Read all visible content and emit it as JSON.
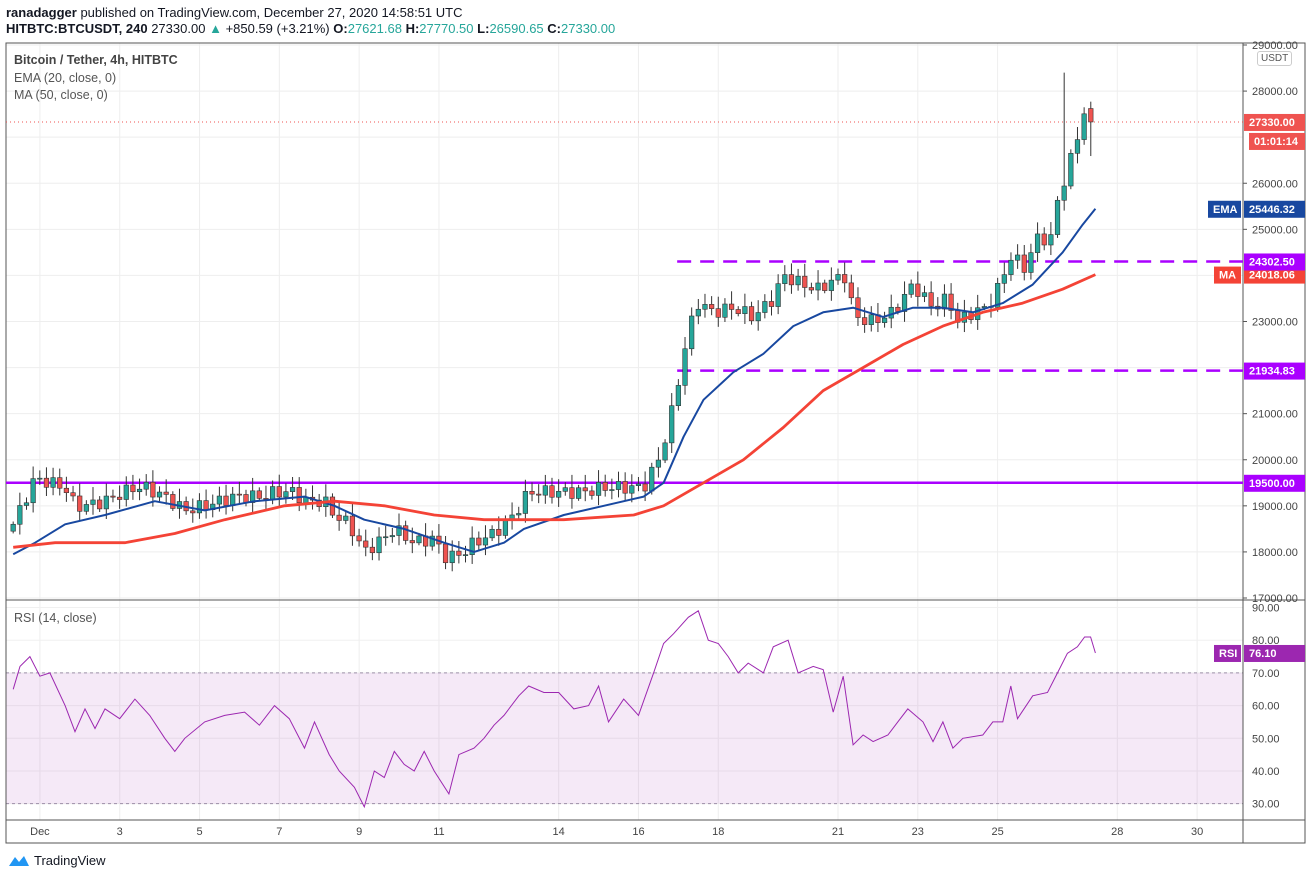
{
  "header": {
    "author": "ranadagger",
    "published": "published on TradingView.com, December 27, 2020 14:58:51 UTC",
    "symbol": "HITBTC:BTCUSDT, 240",
    "last": "27330.00",
    "change": "+850.59 (+3.21%)",
    "o_label": "O:",
    "o": "27621.68",
    "h_label": "H:",
    "h": "27770.50",
    "l_label": "L:",
    "l": "26590.65",
    "c_label": "C:",
    "c": "27330.00"
  },
  "legend": {
    "title": "Bitcoin / Tether, 4h, HITBTC",
    "ema": "EMA (20, close, 0)",
    "ma": "MA (50, close, 0)",
    "rsi": "RSI (14, close)"
  },
  "axis": {
    "currency": "USDT",
    "last_price": "27330.00",
    "countdown": "01:01:14",
    "ema_tag": "EMA",
    "ema_value": "25446.32",
    "ma_tag": "MA",
    "ma_value": "24018.06",
    "rsi_tag": "RSI",
    "rsi_value": "76.10"
  },
  "footer": {
    "brand": "TradingView"
  },
  "colors": {
    "up": "#26a69a",
    "down": "#ef5350",
    "ema": "#1848a0",
    "ma": "#f44336",
    "level": "#aa00ff",
    "rsi": "#9c27b0"
  },
  "chart_data": {
    "type": "candlestick",
    "title": "Bitcoin / Tether, 4h, HITBTC",
    "x_unit": "day of December 2020",
    "candle_interval_days": 0.1667,
    "price_ylim": [
      17000,
      29000
    ],
    "price_ticks": [
      29000,
      28000,
      26000,
      25000,
      23000,
      21000,
      20000,
      19000,
      18000,
      17000
    ],
    "price_tick_labels": [
      "29000.00",
      "28000.00",
      "26000.00",
      "25000.00",
      "23000.00",
      "21000.00",
      "20000.00",
      "19000.00",
      "18000.00",
      "17000.00"
    ],
    "x_ticks": [
      1,
      3,
      5,
      7,
      9,
      11,
      14,
      16,
      18,
      21,
      23,
      25,
      28,
      30
    ],
    "x_tick_labels": [
      "Dec",
      "3",
      "5",
      "7",
      "9",
      "11",
      "14",
      "16",
      "18",
      "21",
      "23",
      "25",
      "28",
      "30"
    ],
    "x_range": [
      0.15,
      31.15
    ],
    "last_candle": {
      "open": 27621.68,
      "high": 27770.5,
      "low": 26590.65,
      "close": 27330.0
    },
    "close_anchors": [
      [
        0.33,
        18600
      ],
      [
        0.88,
        19600
      ],
      [
        1.63,
        19400
      ],
      [
        1.88,
        19000
      ],
      [
        2.13,
        19000
      ],
      [
        2.63,
        19100
      ],
      [
        3.38,
        19400
      ],
      [
        3.63,
        19400
      ],
      [
        4.13,
        19200
      ],
      [
        4.63,
        18900
      ],
      [
        5.13,
        19000
      ],
      [
        5.88,
        19200
      ],
      [
        6.63,
        19200
      ],
      [
        6.88,
        19300
      ],
      [
        7.38,
        19300
      ],
      [
        7.63,
        19100
      ],
      [
        8.13,
        19100
      ],
      [
        8.38,
        18800
      ],
      [
        8.75,
        18600
      ],
      [
        9.13,
        18000
      ],
      [
        9.63,
        18300
      ],
      [
        9.88,
        18500
      ],
      [
        10.38,
        18200
      ],
      [
        10.88,
        18300
      ],
      [
        11.13,
        17900
      ],
      [
        11.38,
        17900
      ],
      [
        11.63,
        18000
      ],
      [
        11.88,
        18200
      ],
      [
        12.38,
        18400
      ],
      [
        12.88,
        18800
      ],
      [
        13.25,
        19300
      ],
      [
        14.63,
        19300
      ],
      [
        15.13,
        19400
      ],
      [
        16.13,
        19400
      ],
      [
        16.5,
        20000
      ],
      [
        16.75,
        20700
      ],
      [
        17,
        21700
      ],
      [
        17.25,
        22800
      ],
      [
        17.5,
        23400
      ],
      [
        17.88,
        23200
      ],
      [
        18.38,
        23300
      ],
      [
        18.88,
        23100
      ],
      [
        19.38,
        23500
      ],
      [
        19.63,
        24000
      ],
      [
        20.13,
        23800
      ],
      [
        20.5,
        23700
      ],
      [
        20.88,
        23900
      ],
      [
        21.25,
        24000
      ],
      [
        21.38,
        23100
      ],
      [
        21.88,
        23000
      ],
      [
        22.38,
        23200
      ],
      [
        22.63,
        23500
      ],
      [
        22.88,
        23800
      ],
      [
        23.38,
        23300
      ],
      [
        23.75,
        23500
      ],
      [
        24,
        23000
      ],
      [
        24.38,
        23200
      ],
      [
        24.75,
        23300
      ],
      [
        25,
        23700
      ],
      [
        25.38,
        24500
      ],
      [
        25.63,
        24100
      ],
      [
        26,
        24800
      ],
      [
        26.38,
        24800
      ],
      [
        26.5,
        25600
      ],
      [
        26.83,
        26500
      ],
      [
        27,
        27000
      ],
      [
        27.18,
        27600
      ],
      [
        27.33,
        27800
      ],
      [
        27.45,
        27330
      ]
    ],
    "series": [
      {
        "name": "EMA (20, close, 0)",
        "points": [
          [
            0.33,
            17950
          ],
          [
            0.88,
            18200
          ],
          [
            1.63,
            18600
          ],
          [
            2.63,
            18800
          ],
          [
            3.88,
            19100
          ],
          [
            5.13,
            18900
          ],
          [
            6.38,
            19100
          ],
          [
            7.63,
            19200
          ],
          [
            8.38,
            19000
          ],
          [
            9.13,
            18700
          ],
          [
            10.13,
            18500
          ],
          [
            11.13,
            18200
          ],
          [
            11.88,
            18000
          ],
          [
            12.63,
            18200
          ],
          [
            13.13,
            18500
          ],
          [
            14.13,
            18800
          ],
          [
            15.13,
            19000
          ],
          [
            16.13,
            19200
          ],
          [
            16.63,
            19500
          ],
          [
            17.13,
            20500
          ],
          [
            17.63,
            21300
          ],
          [
            18.38,
            21900
          ],
          [
            19.13,
            22300
          ],
          [
            19.88,
            22900
          ],
          [
            20.63,
            23200
          ],
          [
            21.38,
            23300
          ],
          [
            22.13,
            23100
          ],
          [
            22.88,
            23300
          ],
          [
            23.63,
            23300
          ],
          [
            24.38,
            23200
          ],
          [
            25.13,
            23400
          ],
          [
            25.88,
            23800
          ],
          [
            26.63,
            24500
          ],
          [
            27.13,
            25100
          ],
          [
            27.45,
            25446.32
          ]
        ]
      },
      {
        "name": "MA (50, close, 0)",
        "points": [
          [
            0.33,
            18100
          ],
          [
            1.38,
            18200
          ],
          [
            3.13,
            18200
          ],
          [
            4.38,
            18400
          ],
          [
            5.63,
            18700
          ],
          [
            7.13,
            19000
          ],
          [
            8.38,
            19100
          ],
          [
            9.63,
            19000
          ],
          [
            10.88,
            18800
          ],
          [
            12.13,
            18700
          ],
          [
            14.13,
            18700
          ],
          [
            15.88,
            18800
          ],
          [
            16.63,
            19000
          ],
          [
            17.63,
            19500
          ],
          [
            18.63,
            20000
          ],
          [
            19.63,
            20700
          ],
          [
            20.63,
            21500
          ],
          [
            21.63,
            22000
          ],
          [
            22.63,
            22500
          ],
          [
            23.63,
            22900
          ],
          [
            24.63,
            23200
          ],
          [
            25.63,
            23400
          ],
          [
            26.63,
            23700
          ],
          [
            27.45,
            24018.06
          ]
        ]
      }
    ],
    "levels": [
      {
        "value": 24302.5,
        "label": "24302.50",
        "style": "dashed",
        "from_day": 16.97
      },
      {
        "value": 21934.83,
        "label": "21934.83",
        "style": "dashed",
        "from_day": 16.97
      },
      {
        "value": 19500.0,
        "label": "19500.00",
        "style": "solid",
        "from_day": 0.15
      }
    ],
    "rsi": {
      "name": "RSI (14, close)",
      "ylim": [
        25,
        92
      ],
      "ticks": [
        90,
        80,
        70,
        60,
        50,
        40,
        30
      ],
      "tick_labels": [
        "90.00",
        "80.00",
        "70.00",
        "60.00",
        "50.00",
        "40.00",
        "30.00"
      ],
      "band": [
        30,
        70
      ],
      "points": [
        [
          0.33,
          65
        ],
        [
          0.5,
          72
        ],
        [
          0.75,
          75
        ],
        [
          1,
          69
        ],
        [
          1.25,
          70
        ],
        [
          1.63,
          60
        ],
        [
          1.88,
          52
        ],
        [
          2.13,
          59
        ],
        [
          2.38,
          53
        ],
        [
          2.63,
          59
        ],
        [
          3,
          56
        ],
        [
          3.38,
          62
        ],
        [
          3.75,
          57
        ],
        [
          4.13,
          50
        ],
        [
          4.38,
          46
        ],
        [
          4.63,
          50
        ],
        [
          5.13,
          55
        ],
        [
          5.63,
          57
        ],
        [
          6.13,
          58
        ],
        [
          6.5,
          54
        ],
        [
          6.88,
          60
        ],
        [
          7.25,
          56
        ],
        [
          7.63,
          47
        ],
        [
          7.88,
          55
        ],
        [
          8.25,
          45
        ],
        [
          8.5,
          40
        ],
        [
          8.88,
          35
        ],
        [
          9.13,
          29
        ],
        [
          9.38,
          40
        ],
        [
          9.63,
          38
        ],
        [
          9.88,
          46
        ],
        [
          10.13,
          42
        ],
        [
          10.38,
          40
        ],
        [
          10.63,
          46
        ],
        [
          10.88,
          40
        ],
        [
          11.25,
          33
        ],
        [
          11.5,
          45
        ],
        [
          11.88,
          47
        ],
        [
          12.13,
          50
        ],
        [
          12.38,
          54
        ],
        [
          12.63,
          57
        ],
        [
          13,
          63
        ],
        [
          13.25,
          66
        ],
        [
          13.63,
          64
        ],
        [
          14,
          64
        ],
        [
          14.38,
          59
        ],
        [
          14.75,
          60
        ],
        [
          15,
          66
        ],
        [
          15.25,
          55
        ],
        [
          15.63,
          62
        ],
        [
          16,
          57
        ],
        [
          16.38,
          70
        ],
        [
          16.63,
          79
        ],
        [
          16.88,
          82
        ],
        [
          17.25,
          87
        ],
        [
          17.5,
          89
        ],
        [
          17.75,
          80
        ],
        [
          18,
          79
        ],
        [
          18.25,
          75
        ],
        [
          18.5,
          70
        ],
        [
          18.75,
          73
        ],
        [
          19.13,
          70
        ],
        [
          19.38,
          78
        ],
        [
          19.75,
          80
        ],
        [
          20,
          70
        ],
        [
          20.38,
          72
        ],
        [
          20.63,
          71
        ],
        [
          20.88,
          58
        ],
        [
          21.13,
          69
        ],
        [
          21.38,
          48
        ],
        [
          21.63,
          51
        ],
        [
          21.88,
          49
        ],
        [
          22.25,
          51
        ],
        [
          22.5,
          55
        ],
        [
          22.75,
          59
        ],
        [
          23.13,
          55
        ],
        [
          23.38,
          49
        ],
        [
          23.63,
          55
        ],
        [
          23.88,
          47
        ],
        [
          24.13,
          50
        ],
        [
          24.63,
          51
        ],
        [
          24.88,
          55
        ],
        [
          25.13,
          55
        ],
        [
          25.33,
          66
        ],
        [
          25.5,
          56
        ],
        [
          25.88,
          63
        ],
        [
          26.25,
          64
        ],
        [
          26.5,
          70
        ],
        [
          26.75,
          76
        ],
        [
          27,
          78
        ],
        [
          27.18,
          81
        ],
        [
          27.33,
          81
        ],
        [
          27.45,
          76.1
        ]
      ]
    }
  }
}
